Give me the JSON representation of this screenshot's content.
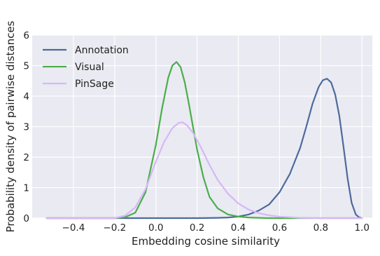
{
  "chart_data": {
    "type": "line",
    "title": "",
    "xlabel": "Embedding cosine similarity",
    "ylabel": "Probability density of pairwise distances",
    "xlim": [
      -0.6,
      1.05
    ],
    "ylim": [
      0,
      6
    ],
    "xticks": [
      -0.4,
      -0.2,
      0.0,
      0.2,
      0.4,
      0.6,
      0.8,
      1.0
    ],
    "xtick_labels": [
      "−0.4",
      "−0.2",
      "0.0",
      "0.2",
      "0.4",
      "0.6",
      "0.8",
      "1.0"
    ],
    "yticks": [
      0,
      1,
      2,
      3,
      4,
      5,
      6
    ],
    "ytick_labels": [
      "0",
      "1",
      "2",
      "3",
      "4",
      "5",
      "6"
    ],
    "grid": true,
    "background": "#eaeaf2",
    "legend_position": "top-left",
    "series": [
      {
        "name": "Annotation",
        "color": "#4c6a9c",
        "x": [
          -0.53,
          0.0,
          0.2,
          0.3,
          0.35,
          0.4,
          0.45,
          0.5,
          0.55,
          0.6,
          0.65,
          0.7,
          0.73,
          0.76,
          0.79,
          0.81,
          0.83,
          0.85,
          0.87,
          0.89,
          0.91,
          0.93,
          0.95,
          0.97,
          0.985,
          1.0
        ],
        "y": [
          0.0,
          0.0,
          0.0,
          0.01,
          0.02,
          0.05,
          0.12,
          0.25,
          0.45,
          0.85,
          1.45,
          2.3,
          3.0,
          3.75,
          4.3,
          4.52,
          4.57,
          4.45,
          4.05,
          3.35,
          2.35,
          1.3,
          0.5,
          0.12,
          0.03,
          0.0
        ]
      },
      {
        "name": "Visual",
        "color": "#4aae4a",
        "x": [
          -0.53,
          -0.2,
          -0.15,
          -0.1,
          -0.05,
          0.0,
          0.03,
          0.06,
          0.08,
          0.1,
          0.12,
          0.14,
          0.16,
          0.18,
          0.2,
          0.23,
          0.26,
          0.3,
          0.35,
          0.4,
          0.45,
          0.5,
          0.55,
          0.6,
          0.7,
          1.0
        ],
        "y": [
          0.0,
          0.0,
          0.03,
          0.18,
          0.85,
          2.4,
          3.6,
          4.6,
          5.0,
          5.12,
          4.95,
          4.45,
          3.75,
          3.0,
          2.25,
          1.35,
          0.7,
          0.32,
          0.12,
          0.05,
          0.02,
          0.01,
          0.0,
          0.0,
          0.0,
          0.0
        ]
      },
      {
        "name": "PinSage",
        "color": "#d7b7f7",
        "x": [
          -0.53,
          -0.2,
          -0.15,
          -0.1,
          -0.05,
          0.0,
          0.04,
          0.08,
          0.11,
          0.13,
          0.15,
          0.18,
          0.22,
          0.26,
          0.3,
          0.35,
          0.4,
          0.45,
          0.5,
          0.55,
          0.6,
          0.65,
          0.7,
          0.8,
          0.9,
          1.0
        ],
        "y": [
          0.0,
          0.0,
          0.08,
          0.35,
          0.95,
          1.85,
          2.5,
          2.95,
          3.12,
          3.14,
          3.05,
          2.8,
          2.3,
          1.75,
          1.25,
          0.8,
          0.48,
          0.28,
          0.16,
          0.09,
          0.05,
          0.03,
          0.01,
          0.0,
          0.0,
          0.0
        ]
      }
    ]
  }
}
